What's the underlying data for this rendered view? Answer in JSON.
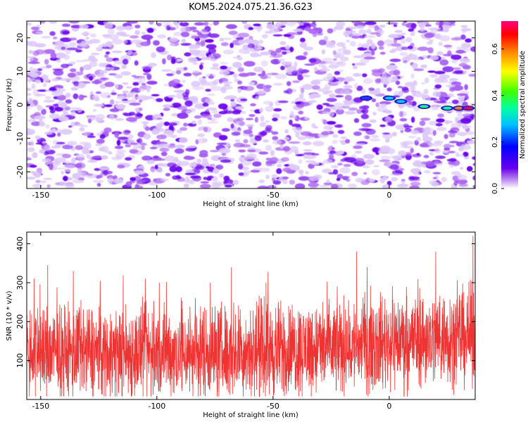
{
  "title": "KOM5.2024.075.21.36.G23",
  "colors": {
    "speckle_dark": "#6a00ee",
    "speckle_mid": "#a860f0",
    "speckle_light": "#ddc8f8",
    "snr_line": "#ee3333"
  },
  "chart_data": [
    {
      "type": "heatmap",
      "name": "spectrogram",
      "xlabel": "Height of straight line (km)",
      "ylabel": "Frequency (Hz)",
      "xlim": [
        -156,
        37
      ],
      "ylim": [
        -25,
        25
      ],
      "xticks": [
        -150,
        -100,
        -50,
        0
      ],
      "xtick_labels": [
        "-150",
        "-100",
        "-50",
        "0"
      ],
      "yticks": [
        -20,
        -10,
        0,
        10,
        20
      ],
      "ytick_labels": [
        "-20",
        "-10",
        "0",
        "10",
        "20"
      ],
      "colorbar": {
        "label": "Normalized spectral amplitude",
        "ticks": [
          0.0,
          0.2,
          0.4,
          0.6
        ],
        "tick_labels": [
          "0.0",
          "0.2",
          "0.4",
          "0.6"
        ],
        "range": [
          0,
          0.72
        ]
      },
      "background": "noise speckle, amplitude mostly below 0.15",
      "signal_trace": {
        "description": "bright streak near 0 to -2 Hz",
        "points": [
          {
            "x": -10,
            "y": 2,
            "v": 0.1
          },
          {
            "x": 0,
            "y": 2,
            "v": 0.15
          },
          {
            "x": 5,
            "y": 1,
            "v": 0.25
          },
          {
            "x": 15,
            "y": -0.5,
            "v": 0.35
          },
          {
            "x": 25,
            "y": -1,
            "v": 0.3
          },
          {
            "x": 30,
            "y": -1,
            "v": 0.55
          },
          {
            "x": 34,
            "y": -1,
            "v": 0.72
          }
        ]
      },
      "grid": false
    },
    {
      "type": "line",
      "name": "snr",
      "xlabel": "Height of straight line (km)",
      "ylabel": "SNR (10 * v/v)",
      "xlim": [
        -156,
        37
      ],
      "ylim": [
        0,
        430
      ],
      "xticks": [
        -150,
        -100,
        -50,
        0
      ],
      "xtick_labels": [
        "-150",
        "-100",
        "-50",
        "0"
      ],
      "yticks": [
        100,
        200,
        300,
        400
      ],
      "ytick_labels": [
        "100",
        "200",
        "300",
        "400"
      ],
      "series": [
        {
          "color": "#ee3333",
          "description": "dense noisy trace, ~2500 samples, mean ~120 rising to ~160 near 0 km, peaks to ~420",
          "baseline_profile": [
            {
              "x": -156,
              "y": 120
            },
            {
              "x": -100,
              "y": 120
            },
            {
              "x": -50,
              "y": 125
            },
            {
              "x": -20,
              "y": 135
            },
            {
              "x": 0,
              "y": 150
            },
            {
              "x": 37,
              "y": 165
            }
          ],
          "notable_peaks": [
            {
              "x": -147,
              "y": 345
            },
            {
              "x": -136,
              "y": 330
            },
            {
              "x": -99,
              "y": 300
            },
            {
              "x": -77,
              "y": 300
            },
            {
              "x": -53,
              "y": 300
            },
            {
              "x": -14,
              "y": 380
            },
            {
              "x": 20,
              "y": 380
            },
            {
              "x": 36,
              "y": 420
            }
          ]
        }
      ],
      "grid": false
    }
  ]
}
